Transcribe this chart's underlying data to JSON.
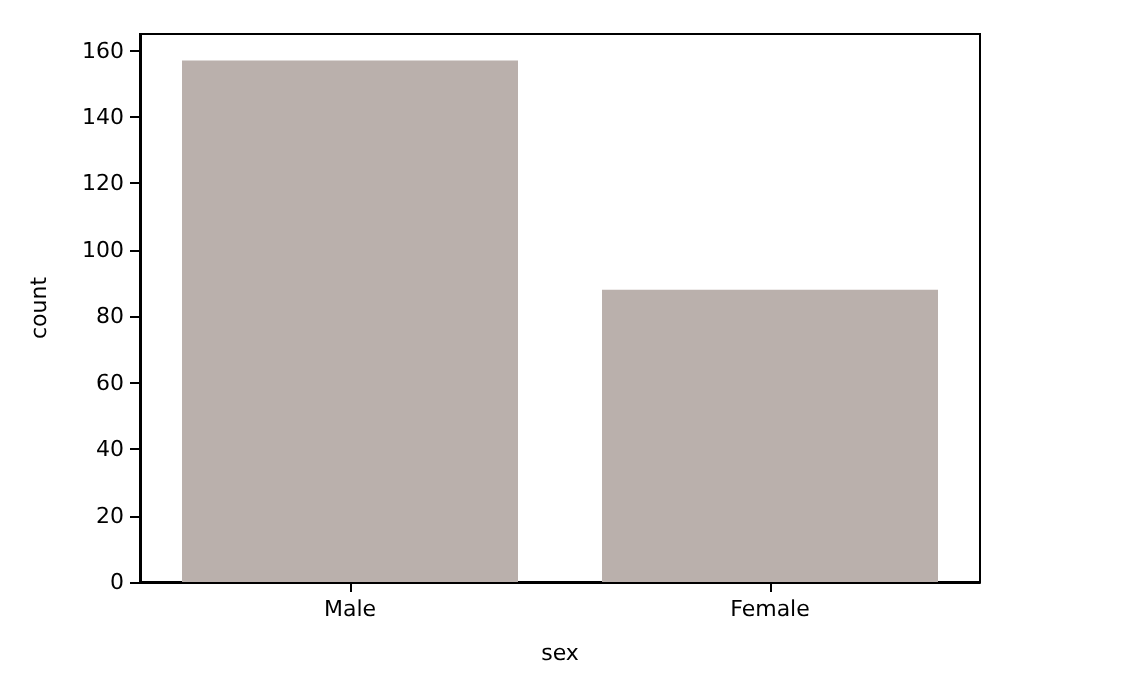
{
  "chart_data": {
    "type": "bar",
    "xlabel": "sex",
    "ylabel": "count",
    "categories": [
      "Male",
      "Female"
    ],
    "values": [
      157,
      88
    ],
    "color": "#bab0ac",
    "ylim": [
      0,
      165
    ],
    "yticks": [
      0,
      20,
      40,
      60,
      80,
      100,
      120,
      140,
      160
    ],
    "grid": false
  }
}
